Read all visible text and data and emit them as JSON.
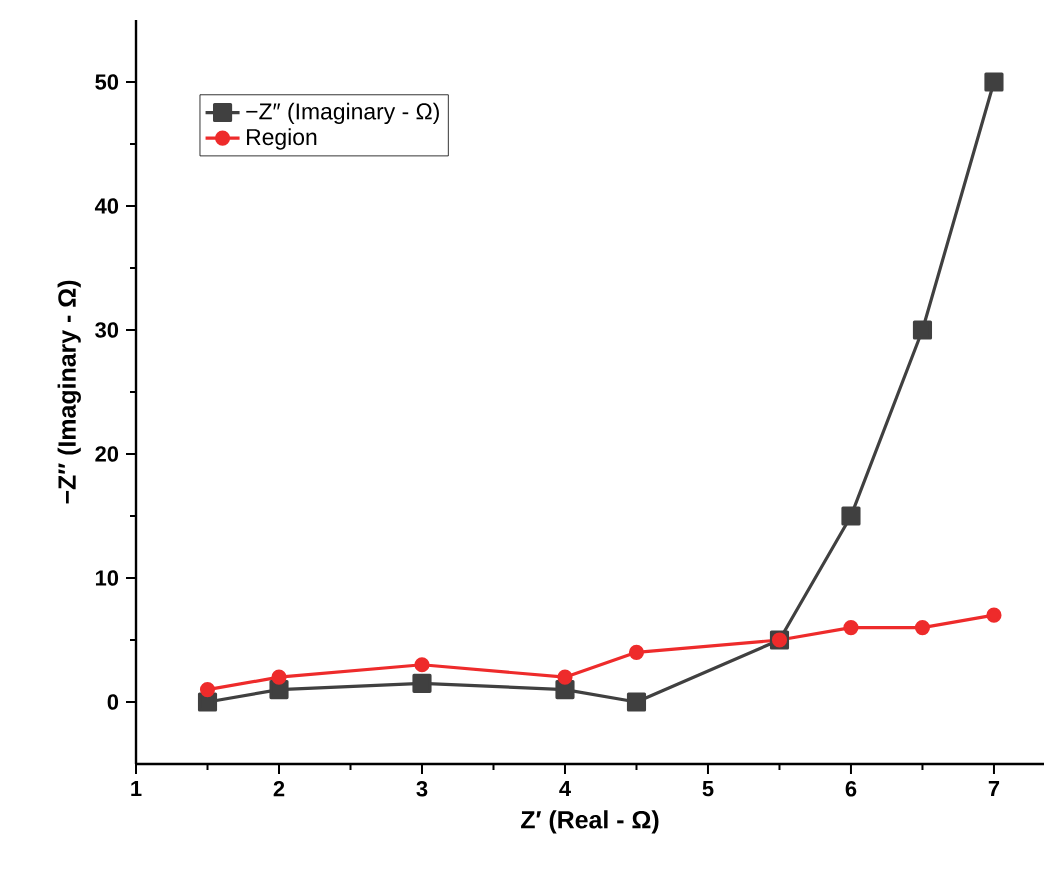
{
  "chart_data": {
    "type": "line",
    "xlabel": "Z′ (Real - Ω)",
    "ylabel": "−Z″ (Imaginary - Ω)",
    "xlim": [
      1,
      7.35
    ],
    "ylim": [
      -5,
      55
    ],
    "xticks": [
      1,
      2,
      3,
      4,
      5,
      6,
      7
    ],
    "yticks": [
      0,
      10,
      20,
      30,
      40,
      50
    ],
    "grid": false,
    "legend": "top left",
    "line_style": "solid",
    "series": [
      {
        "name": "−Z″ (Imaginary - Ω)",
        "color": "#404040",
        "marker": "square",
        "x": [
          1.5,
          2,
          3,
          4,
          4.5,
          5.5,
          6,
          6.5,
          7
        ],
        "values": [
          0,
          1,
          1.5,
          1,
          0,
          5,
          15,
          30,
          50
        ]
      },
      {
        "name": "Region",
        "color": "#ee2b2b",
        "marker": "circle",
        "x": [
          1.5,
          2,
          3,
          4,
          4.5,
          5.5,
          6,
          6.5,
          7
        ],
        "values": [
          1,
          2,
          3,
          2,
          4,
          5,
          6,
          6,
          7
        ]
      }
    ]
  }
}
